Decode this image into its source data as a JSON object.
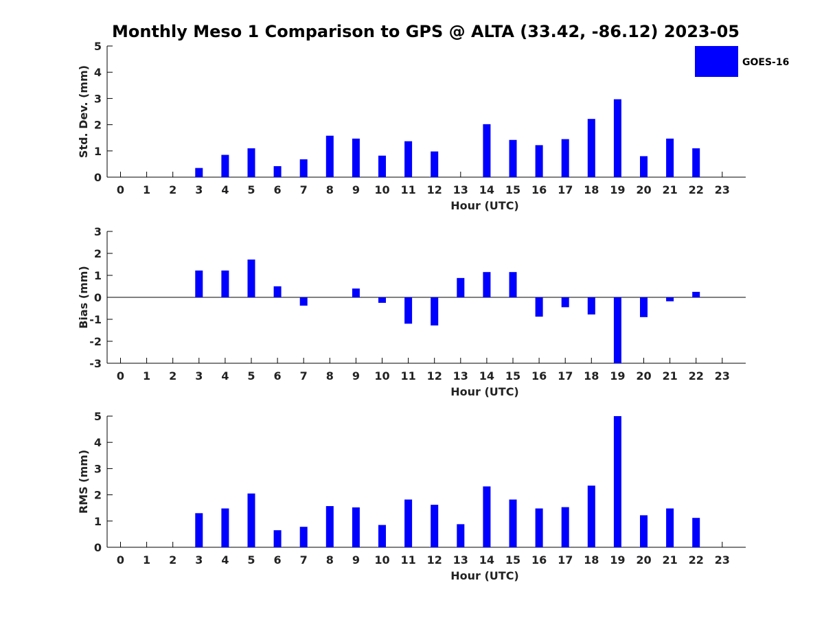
{
  "title": "Monthly Meso 1 Comparison to GPS @ ALTA (33.42, -86.12) 2023-05",
  "legend": {
    "label": "GOES-16",
    "color": "#0000ff",
    "placement": "top-right"
  },
  "chart_data": [
    {
      "type": "bar",
      "ylabel": "Std. Dev. (mm)",
      "xlabel": "Hour (UTC)",
      "ylim": [
        0,
        5
      ],
      "yticks": [
        0,
        1,
        2,
        3,
        4,
        5
      ],
      "categories": [
        "0",
        "1",
        "2",
        "3",
        "4",
        "5",
        "6",
        "7",
        "8",
        "9",
        "10",
        "11",
        "12",
        "13",
        "14",
        "15",
        "16",
        "17",
        "18",
        "19",
        "20",
        "21",
        "22",
        "23"
      ],
      "series": [
        {
          "name": "GOES-16",
          "values": [
            null,
            null,
            null,
            0.35,
            0.85,
            1.1,
            0.42,
            0.68,
            1.58,
            1.47,
            0.82,
            1.37,
            0.98,
            null,
            2.02,
            1.42,
            1.22,
            1.45,
            2.22,
            2.97,
            0.8,
            1.47,
            1.1,
            null
          ]
        }
      ]
    },
    {
      "type": "bar",
      "ylabel": "Bias (mm)",
      "xlabel": "Hour (UTC)",
      "ylim": [
        -3,
        3
      ],
      "yticks": [
        -3,
        -2,
        -1,
        0,
        1,
        2,
        3
      ],
      "categories": [
        "0",
        "1",
        "2",
        "3",
        "4",
        "5",
        "6",
        "7",
        "8",
        "9",
        "10",
        "11",
        "12",
        "13",
        "14",
        "15",
        "16",
        "17",
        "18",
        "19",
        "20",
        "21",
        "22",
        "23"
      ],
      "series": [
        {
          "name": "GOES-16",
          "values": [
            null,
            null,
            null,
            1.22,
            1.22,
            1.72,
            0.5,
            -0.38,
            null,
            0.4,
            -0.25,
            -1.2,
            -1.28,
            0.88,
            1.15,
            1.15,
            -0.88,
            -0.45,
            -0.78,
            -3.0,
            -0.9,
            -0.18,
            0.25,
            null
          ]
        }
      ]
    },
    {
      "type": "bar",
      "ylabel": "RMS (mm)",
      "xlabel": "Hour (UTC)",
      "ylim": [
        0,
        5
      ],
      "yticks": [
        0,
        1,
        2,
        3,
        4,
        5
      ],
      "categories": [
        "0",
        "1",
        "2",
        "3",
        "4",
        "5",
        "6",
        "7",
        "8",
        "9",
        "10",
        "11",
        "12",
        "13",
        "14",
        "15",
        "16",
        "17",
        "18",
        "19",
        "20",
        "21",
        "22",
        "23"
      ],
      "series": [
        {
          "name": "GOES-16",
          "values": [
            null,
            null,
            null,
            1.3,
            1.48,
            2.05,
            0.65,
            0.78,
            1.57,
            1.52,
            0.85,
            1.82,
            1.62,
            0.88,
            2.32,
            1.82,
            1.48,
            1.53,
            2.35,
            5.0,
            1.22,
            1.48,
            1.12,
            null
          ]
        }
      ]
    }
  ]
}
